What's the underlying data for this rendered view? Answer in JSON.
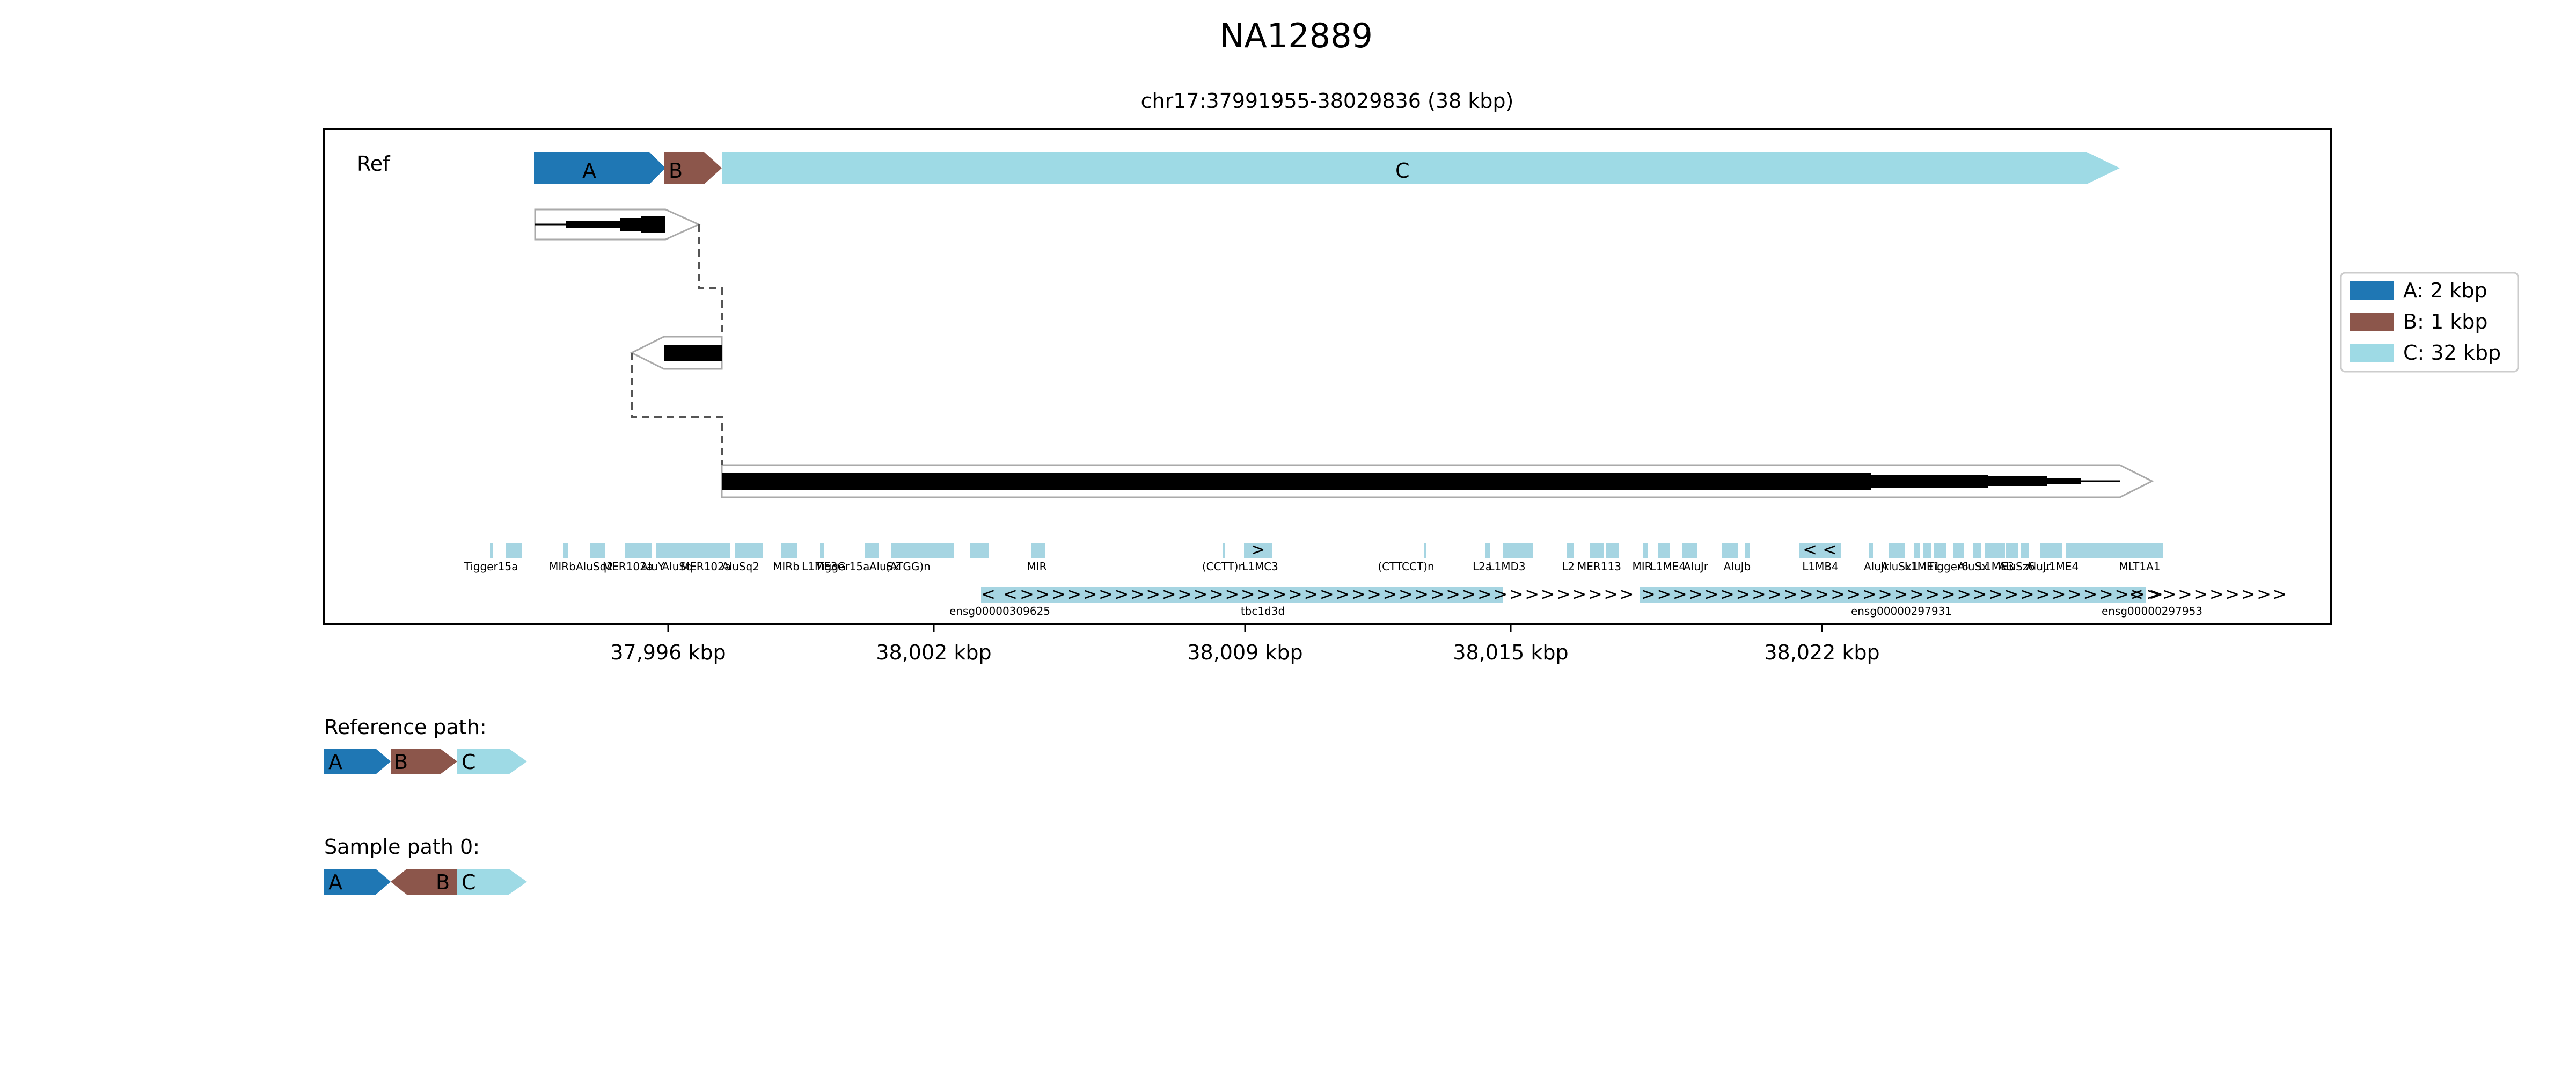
{
  "title": "NA12889",
  "subtitle": "chr17:37991955-38029836 (38 kbp)",
  "colors": {
    "A": "#1f77b4",
    "B": "#8c564b",
    "C": "#9edae5",
    "axis": "#000000",
    "outline": "#999999",
    "repeat": "#a6d5e2"
  },
  "track_label": "Ref",
  "segments": [
    {
      "name": "A",
      "label": "A"
    },
    {
      "name": "B",
      "label": "B"
    },
    {
      "name": "C",
      "label": "C"
    }
  ],
  "legend": [
    {
      "segment": "A",
      "label": "A: 2 kbp"
    },
    {
      "segment": "B",
      "label": "B: 1 kbp"
    },
    {
      "segment": "C",
      "label": "C: 32 kbp"
    }
  ],
  "axis_ticks": [
    "37,996 kbp",
    "38,002 kbp",
    "38,009 kbp",
    "38,015 kbp",
    "38,022 kbp"
  ],
  "repeat_labels": [
    "Tigger15a",
    "MIRb",
    "AluSq2",
    "MER102a",
    "AluY",
    "AluSq",
    "MER102a",
    "AluSq2",
    "MIRb",
    "L1ME3G",
    "Tigger15a",
    "AluSx",
    "(ATGG)n",
    "MIR",
    "(CCTT)n",
    "L1MC3",
    "(CTTCCT)n",
    "L2a",
    "L1MD3",
    "L2",
    "MER113",
    "MIR",
    "L1ME4",
    "AluJr",
    "AluJb",
    "L1MB4",
    "AluJr",
    "AluSx1",
    "L1ME1",
    "Tigger6",
    "AluSx",
    "L1ME3",
    "AluSz6",
    "AluJr",
    "L1ME4",
    "MLT1A1"
  ],
  "gene_labels": [
    "ensg00000309625",
    "tbc1d3d",
    "ensg00000297931",
    "ensg00000297953"
  ],
  "paths": [
    {
      "title": "Reference path:",
      "steps": [
        {
          "segment": "A",
          "label": "A",
          "strand": "+"
        },
        {
          "segment": "B",
          "label": "B",
          "strand": "+"
        },
        {
          "segment": "C",
          "label": "C",
          "strand": "+"
        }
      ]
    },
    {
      "title": "Sample path 0:",
      "steps": [
        {
          "segment": "A",
          "label": "A",
          "strand": "+"
        },
        {
          "segment": "B",
          "label": "B",
          "strand": "-"
        },
        {
          "segment": "C",
          "label": "C",
          "strand": "+"
        }
      ]
    }
  ]
}
